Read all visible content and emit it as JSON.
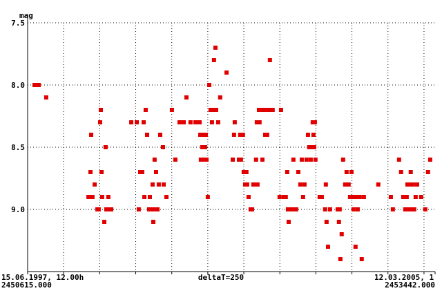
{
  "chart_data": {
    "type": "scatter",
    "y_label": "mag",
    "center_label": "deltaT=250",
    "start_date": "15.06.1997, 12.00h",
    "end_date": "12.03.2005, 1",
    "xlim": [
      2450615,
      2453442
    ],
    "xticks": [
      {
        "value": 2450615,
        "label": "2450615.000"
      },
      2450865,
      2451115,
      2451365,
      2451615,
      2451865,
      2452115,
      2452365,
      2452615,
      2452865,
      2453115,
      2453365,
      {
        "value": 2453442,
        "label": "2453442.000"
      }
    ],
    "ylim": [
      7.5,
      9.5
    ],
    "y_inverted": true,
    "yticks": [
      7.5,
      {
        "value": 8,
        "label": "8.0"
      },
      8.5,
      {
        "value": 9,
        "label": "9.0"
      }
    ],
    "grid": true,
    "color": "#e00000",
    "x": [
      2450663,
      2450677,
      2450692,
      2450744,
      2451037,
      2451051,
      2451056,
      2451051,
      2451065,
      2451080,
      2451099,
      2451108,
      2451118,
      2451123,
      2451128,
      2451132,
      2451147,
      2451156,
      2451161,
      2451175,
      2451180,
      2451195,
      2451334,
      2451372,
      2451386,
      2451396,
      2451410,
      2451420,
      2451425,
      2451434,
      2451444,
      2451458,
      2451463,
      2451472,
      2451482,
      2451487,
      2451496,
      2451496,
      2451506,
      2451516,
      2451525,
      2451535,
      2451554,
      2451559,
      2451578,
      2451616,
      2451640,
      2451669,
      2451698,
      2451717,
      2451745,
      2451779,
      2451793,
      2451808,
      2451813,
      2451817,
      2451827,
      2451832,
      2451841,
      2451846,
      2451851,
      2451856,
      2451865,
      2451875,
      2451884,
      2451894,
      2451904,
      2451908,
      2451918,
      2451923,
      2451937,
      2451951,
      2451995,
      2452038,
      2452047,
      2452052,
      2452081,
      2452090,
      2452095,
      2452109,
      2452114,
      2452124,
      2452133,
      2452138,
      2452148,
      2452162,
      2452172,
      2452181,
      2452196,
      2452200,
      2452205,
      2452210,
      2452220,
      2452224,
      2452234,
      2452244,
      2452253,
      2452263,
      2452272,
      2452277,
      2452292,
      2452296,
      2452315,
      2452363,
      2452373,
      2452392,
      2452406,
      2452416,
      2452421,
      2452426,
      2452445,
      2452459,
      2452464,
      2452478,
      2452493,
      2452507,
      2452517,
      2452526,
      2452536,
      2452550,
      2452560,
      2452569,
      2452579,
      2452584,
      2452593,
      2452598,
      2452603,
      2452608,
      2452612,
      2452641,
      2452656,
      2452679,
      2452684,
      2452689,
      2452699,
      2452713,
      2452766,
      2452775,
      2452780,
      2452785,
      2452794,
      2452804,
      2452818,
      2452828,
      2452833,
      2452842,
      2452852,
      2452862,
      2452866,
      2452876,
      2452885,
      2452890,
      2452900,
      2452905,
      2452919,
      2452933,
      2452948,
      2453048,
      2453135,
      2453149,
      2453192,
      2453206,
      2453221,
      2453235,
      2453245,
      2453250,
      2453259,
      2453264,
      2453273,
      2453278,
      2453288,
      2453297,
      2453307,
      2453317,
      2453345,
      2453374,
      2453393,
      2453408
    ],
    "values": [
      8.0,
      8.0,
      8.0,
      8.1,
      8.9,
      8.9,
      8.4,
      8.7,
      8.9,
      8.8,
      9.0,
      9.0,
      8.3,
      8.2,
      8.7,
      8.9,
      9.1,
      8.5,
      9.0,
      8.9,
      9.0,
      9.0,
      8.3,
      8.3,
      9.0,
      8.7,
      8.7,
      8.3,
      8.9,
      8.2,
      8.4,
      9.0,
      8.9,
      9.0,
      8.8,
      9.1,
      8.6,
      9.0,
      8.7,
      9.0,
      8.8,
      8.4,
      8.5,
      8.8,
      8.9,
      8.2,
      8.6,
      8.3,
      8.3,
      8.1,
      8.3,
      8.3,
      8.3,
      8.3,
      8.4,
      8.6,
      8.5,
      8.4,
      8.6,
      8.5,
      8.4,
      8.6,
      8.9,
      8.0,
      8.2,
      8.3,
      8.2,
      7.8,
      7.7,
      8.2,
      8.3,
      8.1,
      7.9,
      8.6,
      8.4,
      8.3,
      8.6,
      8.4,
      8.6,
      8.4,
      8.7,
      8.8,
      8.7,
      8.8,
      8.9,
      9.0,
      9.0,
      8.8,
      8.8,
      8.6,
      8.3,
      8.8,
      8.2,
      8.3,
      8.2,
      8.6,
      8.2,
      8.4,
      8.2,
      8.4,
      8.2,
      7.8,
      8.2,
      8.9,
      8.2,
      8.9,
      8.9,
      8.7,
      9.0,
      9.1,
      9.0,
      8.6,
      9.0,
      9.0,
      8.7,
      8.8,
      8.6,
      8.9,
      8.8,
      8.6,
      8.4,
      8.5,
      8.6,
      8.5,
      8.3,
      8.4,
      8.5,
      8.3,
      8.6,
      8.9,
      8.9,
      9.0,
      8.8,
      9.1,
      9.3,
      9.0,
      9.0,
      9.1,
      9.0,
      9.4,
      9.2,
      8.6,
      8.8,
      8.7,
      8.8,
      8.8,
      8.9,
      8.7,
      8.9,
      9.0,
      8.9,
      9.3,
      8.9,
      9.0,
      8.9,
      9.4,
      8.9,
      8.8,
      8.9,
      9.0,
      8.6,
      8.7,
      8.9,
      9.0,
      8.9,
      8.8,
      9.0,
      8.8,
      8.7,
      9.0,
      8.8,
      9.0,
      8.9,
      8.8,
      8.9,
      9.0,
      8.7,
      8.6
    ]
  }
}
